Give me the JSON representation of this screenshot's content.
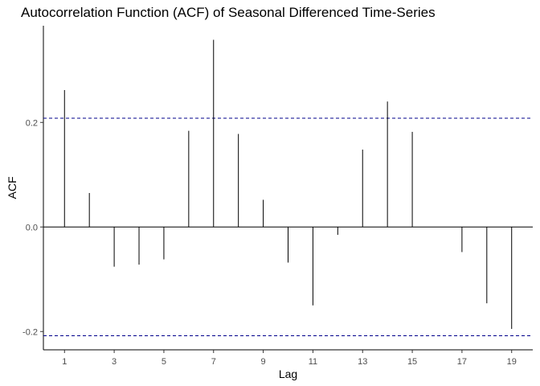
{
  "chart_data": {
    "type": "bar",
    "title": "Autocorrelation Function (ACF) of Seasonal Differenced Time-Series",
    "xlabel": "Lag",
    "ylabel": "ACF",
    "x": [
      1,
      2,
      3,
      4,
      5,
      6,
      7,
      8,
      9,
      10,
      11,
      12,
      13,
      14,
      15,
      16,
      17,
      18,
      19
    ],
    "values": [
      0.262,
      0.065,
      -0.076,
      -0.072,
      -0.062,
      0.184,
      0.358,
      0.178,
      0.052,
      -0.068,
      -0.15,
      -0.015,
      0.148,
      0.24,
      0.182,
      0.0,
      -0.048,
      -0.146,
      -0.195
    ],
    "x_ticks": [
      1,
      3,
      5,
      7,
      9,
      11,
      13,
      15,
      17,
      19
    ],
    "y_ticks": [
      -0.2,
      0.0,
      0.2
    ],
    "y_tick_labels": [
      "-0.2",
      "0.0",
      "0.2"
    ],
    "xlim": [
      0.15,
      19.85
    ],
    "ylim": [
      -0.235,
      0.385
    ],
    "confidence_bounds": [
      0.208,
      -0.208
    ],
    "grid": false,
    "colors": {
      "bars": "#000000",
      "bounds": "#00008b",
      "zero_line": "#000000"
    }
  }
}
